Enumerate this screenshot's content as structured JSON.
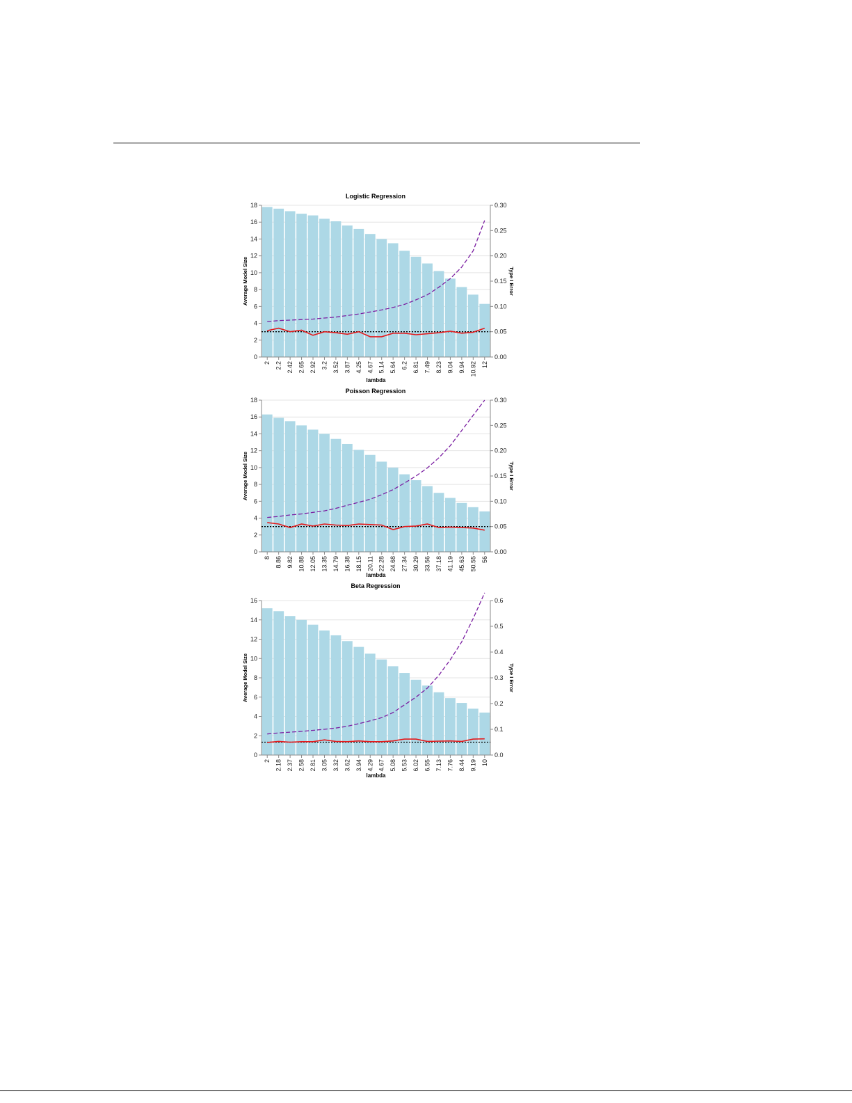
{
  "chart_data": [
    {
      "type": "bar",
      "title": "Logistic Regression",
      "xlabel": "lambda",
      "ylabel": "Average Model Size",
      "y2label": "Type I Error",
      "ylim": [
        0,
        18
      ],
      "y_ticks": [
        0,
        2,
        4,
        6,
        8,
        10,
        12,
        14,
        16,
        18
      ],
      "y2lim": [
        0,
        0.3
      ],
      "y2_ticks": [
        "0.00",
        "0.05",
        "0.10",
        "0.15",
        "0.20",
        "0.25",
        "0.30"
      ],
      "grid": true,
      "categories": [
        "2",
        "2.2",
        "2.42",
        "2.65",
        "2.92",
        "3.2",
        "3.52",
        "3.87",
        "4.25",
        "4.67",
        "5.14",
        "5.64",
        "6.2",
        "6.81",
        "7.49",
        "8.23",
        "9.04",
        "9.94",
        "10.92",
        "12"
      ],
      "bars": [
        17.8,
        17.6,
        17.3,
        17.0,
        16.8,
        16.4,
        16.1,
        15.6,
        15.2,
        14.6,
        14.0,
        13.5,
        12.6,
        11.9,
        11.1,
        10.2,
        9.3,
        8.3,
        7.4,
        6.3
      ],
      "dashed_line": [
        0.07,
        0.072,
        0.073,
        0.074,
        0.075,
        0.077,
        0.079,
        0.082,
        0.085,
        0.089,
        0.093,
        0.098,
        0.104,
        0.113,
        0.123,
        0.138,
        0.155,
        0.178,
        0.21,
        0.27
      ],
      "red_line": [
        0.052,
        0.057,
        0.05,
        0.053,
        0.043,
        0.05,
        0.048,
        0.045,
        0.05,
        0.04,
        0.04,
        0.047,
        0.047,
        0.044,
        0.046,
        0.048,
        0.051,
        0.047,
        0.049,
        0.057
      ],
      "reference_line": 0.05,
      "colors": {
        "bar": "#add8e6",
        "dashed": "#7b1fa2",
        "red": "#e41a1c",
        "reference": "#000000"
      }
    },
    {
      "type": "bar",
      "title": "Poisson Regression",
      "xlabel": "lambda",
      "ylabel": "Average Model Size",
      "y2label": "Type I Error",
      "ylim": [
        0,
        18
      ],
      "y_ticks": [
        0,
        2,
        4,
        6,
        8,
        10,
        12,
        14,
        16,
        18
      ],
      "y2lim": [
        0,
        0.3
      ],
      "y2_ticks": [
        "0.00",
        "0.05",
        "0.10",
        "0.15",
        "0.20",
        "0.25",
        "0.30"
      ],
      "grid": true,
      "categories": [
        "8",
        "8.86",
        "9.82",
        "10.88",
        "12.05",
        "13.35",
        "14.79",
        "16.38",
        "18.15",
        "20.11",
        "22.28",
        "24.68",
        "27.34",
        "30.29",
        "33.56",
        "37.18",
        "41.19",
        "45.63",
        "50.55",
        "56"
      ],
      "bars": [
        16.3,
        15.9,
        15.5,
        15.0,
        14.5,
        14.0,
        13.4,
        12.8,
        12.1,
        11.5,
        10.7,
        10.0,
        9.2,
        8.5,
        7.8,
        7.0,
        6.4,
        5.8,
        5.3,
        4.8
      ],
      "dashed_line": [
        0.068,
        0.07,
        0.073,
        0.075,
        0.078,
        0.081,
        0.086,
        0.092,
        0.098,
        0.104,
        0.113,
        0.123,
        0.136,
        0.15,
        0.166,
        0.186,
        0.21,
        0.24,
        0.27,
        0.3
      ],
      "red_line": [
        0.058,
        0.055,
        0.048,
        0.055,
        0.051,
        0.055,
        0.053,
        0.052,
        0.055,
        0.054,
        0.053,
        0.044,
        0.05,
        0.051,
        0.055,
        0.048,
        0.049,
        0.048,
        0.047,
        0.043
      ],
      "reference_line": 0.05,
      "colors": {
        "bar": "#add8e6",
        "dashed": "#7b1fa2",
        "red": "#e41a1c",
        "reference": "#000000"
      }
    },
    {
      "type": "bar",
      "title": "Beta Regression",
      "xlabel": "lambda",
      "ylabel": "Average Model Size",
      "y2label": "Type I Error",
      "ylim": [
        0,
        16
      ],
      "y_ticks": [
        0,
        2,
        4,
        6,
        8,
        10,
        12,
        14,
        16
      ],
      "y2lim": [
        0,
        0.6
      ],
      "y2_ticks": [
        "0.0",
        "0.1",
        "0.2",
        "0.3",
        "0.4",
        "0.5",
        "0.6"
      ],
      "grid": true,
      "categories": [
        "2",
        "2.18",
        "2.37",
        "2.58",
        "2.81",
        "3.05",
        "3.32",
        "3.62",
        "3.94",
        "4.29",
        "4.67",
        "5.08",
        "5.53",
        "6.02",
        "6.55",
        "7.13",
        "7.76",
        "8.44",
        "9.19",
        "10"
      ],
      "bars": [
        15.2,
        14.9,
        14.4,
        14.0,
        13.5,
        12.9,
        12.4,
        11.8,
        11.2,
        10.5,
        9.9,
        9.2,
        8.5,
        7.8,
        7.2,
        6.5,
        5.9,
        5.4,
        4.8,
        4.4
      ],
      "dashed_line": [
        0.082,
        0.086,
        0.089,
        0.092,
        0.096,
        0.1,
        0.105,
        0.112,
        0.122,
        0.133,
        0.145,
        0.165,
        0.195,
        0.225,
        0.26,
        0.31,
        0.37,
        0.44,
        0.53,
        0.63
      ],
      "red_line": [
        0.049,
        0.053,
        0.05,
        0.052,
        0.052,
        0.059,
        0.053,
        0.052,
        0.055,
        0.052,
        0.052,
        0.055,
        0.062,
        0.062,
        0.053,
        0.054,
        0.055,
        0.053,
        0.062,
        0.063
      ],
      "reference_line": 0.05,
      "colors": {
        "bar": "#add8e6",
        "dashed": "#7b1fa2",
        "red": "#e41a1c",
        "reference": "#000000"
      }
    }
  ]
}
